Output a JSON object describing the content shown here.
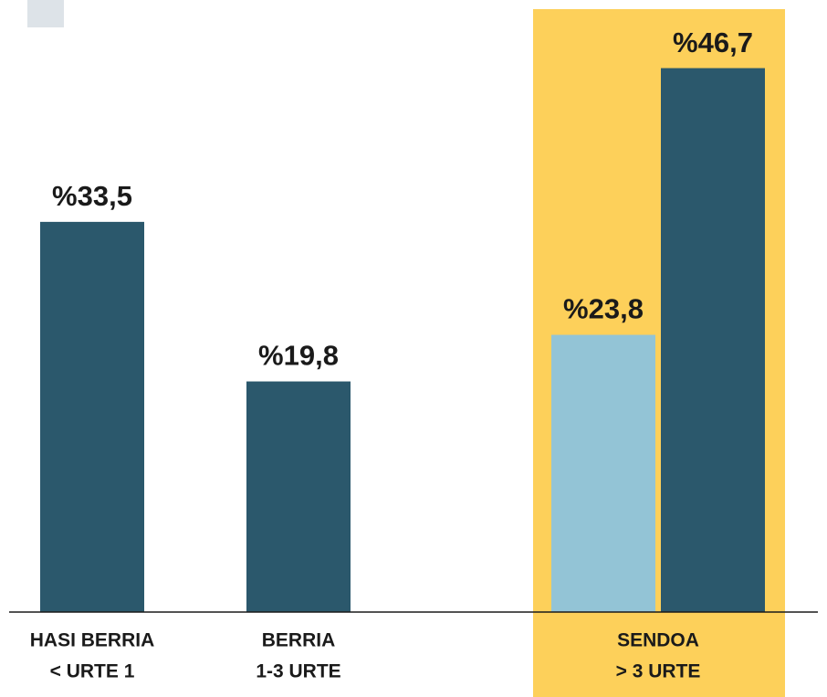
{
  "chart_data": {
    "type": "bar",
    "categories": [
      [
        "HASI BERRIA",
        "< URTE 1"
      ],
      [
        "BERRIA",
        "1-3 URTE"
      ],
      [
        "SENDOA",
        "> 3 URTE"
      ]
    ],
    "series": [
      {
        "color": "#93c4d6",
        "values": [
          null,
          null,
          23.8
        ],
        "value_labels": [
          null,
          null,
          "%23,8"
        ]
      },
      {
        "color": "#2b586c",
        "values": [
          33.5,
          19.8,
          46.7
        ],
        "value_labels": [
          "%33,5",
          "%19,8",
          "%46,7"
        ]
      }
    ],
    "ylim": [
      0,
      50
    ],
    "highlight_category": 2,
    "highlight_color": "#fdd05a"
  }
}
